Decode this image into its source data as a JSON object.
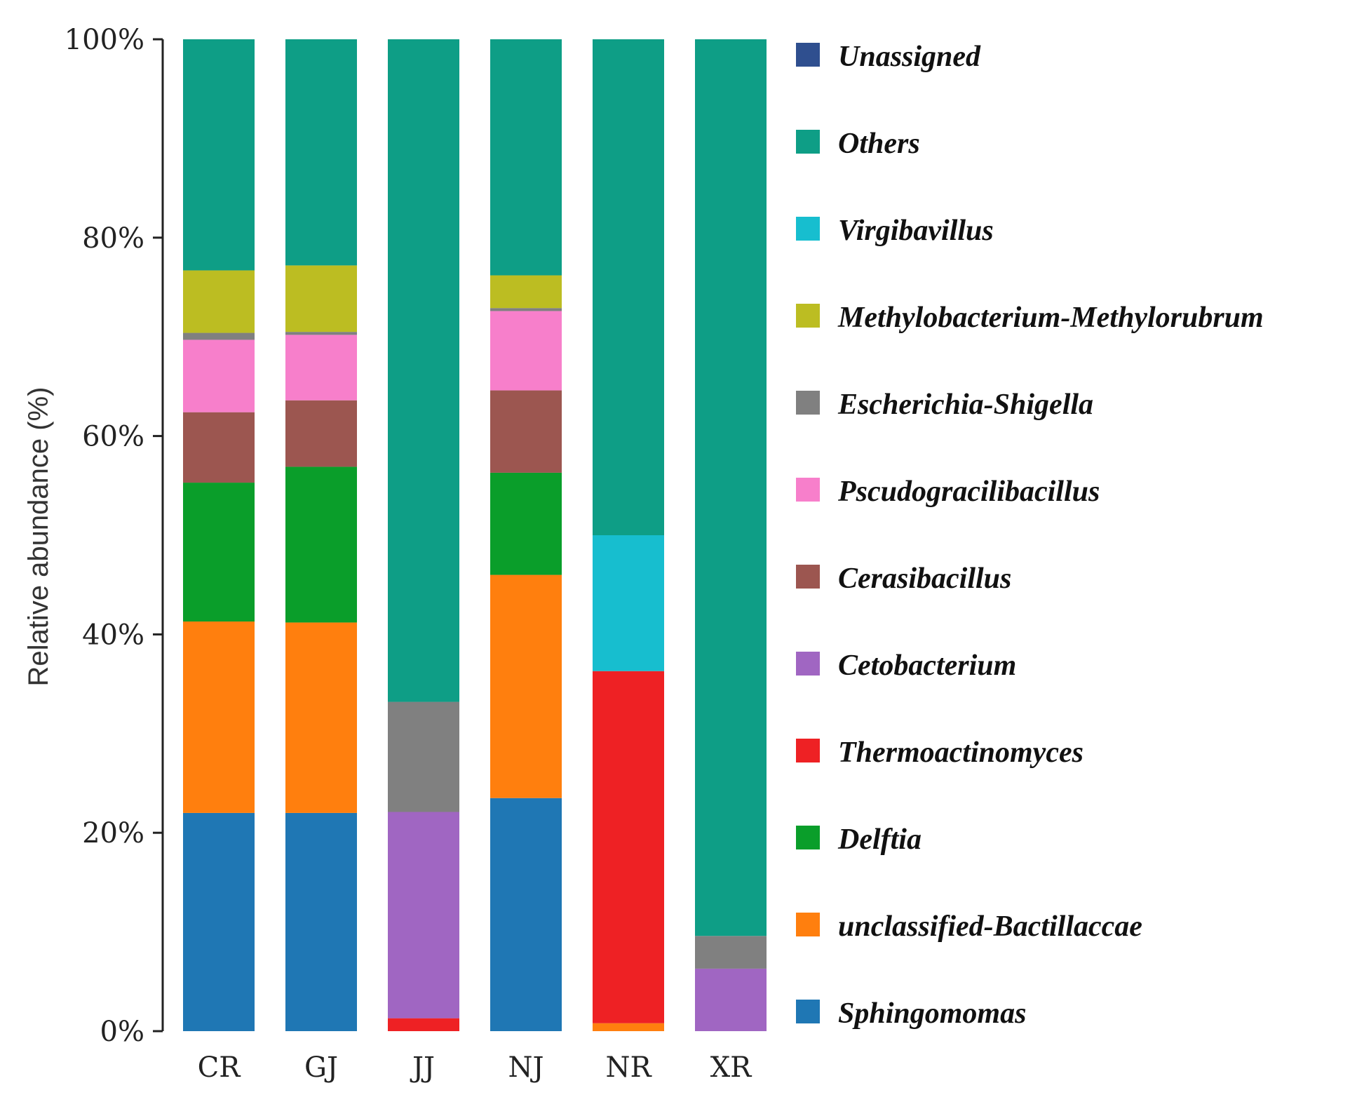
{
  "chart_data": {
    "type": "bar",
    "stacked": true,
    "title": "",
    "xlabel": "",
    "ylabel": "Relative abundance (%)",
    "ylim": [
      0,
      100
    ],
    "yticks": [
      "0%",
      "20%",
      "40%",
      "60%",
      "80%",
      "100%"
    ],
    "categories": [
      "CR",
      "GJ",
      "JJ",
      "NJ",
      "NR",
      "XR"
    ],
    "legend_position": "right",
    "series": [
      {
        "name": "Sphingomomas",
        "color": "#1f77b4",
        "values": [
          22,
          22,
          0,
          23.5,
          0,
          0
        ]
      },
      {
        "name": "unclassified-Bactillaccae",
        "color": "#ff7f0e",
        "values": [
          19.3,
          19.2,
          0,
          22.5,
          0.8,
          0
        ]
      },
      {
        "name": "Delftia",
        "color": "#0a9e2a",
        "values": [
          14,
          15.7,
          0,
          10.3,
          0,
          0
        ]
      },
      {
        "name": "Thermoactinomyces",
        "color": "#ee2124",
        "values": [
          0,
          0,
          1.3,
          0,
          35.5,
          0
        ]
      },
      {
        "name": "Cetobacterium",
        "color": "#a066c2",
        "values": [
          0,
          0,
          20.8,
          0,
          0,
          6.3
        ]
      },
      {
        "name": "Cerasibacillus",
        "color": "#9c5650",
        "values": [
          7.1,
          6.7,
          0,
          8.3,
          0,
          0
        ]
      },
      {
        "name": "Pscudogracilibacillus",
        "color": "#f77fcb",
        "values": [
          7.3,
          6.6,
          0,
          8,
          0,
          0
        ]
      },
      {
        "name": "Escherichia-Shigella",
        "color": "#808080",
        "values": [
          0.7,
          0.3,
          11.1,
          0.3,
          0,
          3.3
        ]
      },
      {
        "name": "Methylobacterium-Methylorubrum",
        "color": "#bcbd22",
        "values": [
          6.3,
          6.7,
          0,
          3.3,
          0,
          0
        ]
      },
      {
        "name": "Virgibavillus",
        "color": "#17becf",
        "values": [
          0,
          0,
          0,
          0,
          13.7,
          0
        ]
      },
      {
        "name": "Others",
        "color": "#0e9e86",
        "values": [
          23.3,
          22.8,
          66.8,
          23.8,
          50,
          90.4
        ]
      },
      {
        "name": "Unassigned",
        "color": "#2f4f8f",
        "values": [
          0,
          0,
          0,
          0,
          0,
          0
        ]
      }
    ],
    "legend_order": [
      "Unassigned",
      "Others",
      "Virgibavillus",
      "Methylobacterium-Methylorubrum",
      "Escherichia-Shigella",
      "Pscudogracilibacillus",
      "Cerasibacillus",
      "Cetobacterium",
      "Thermoactinomyces",
      "Delftia",
      "unclassified-Bactillaccae",
      "Sphingomomas"
    ]
  }
}
